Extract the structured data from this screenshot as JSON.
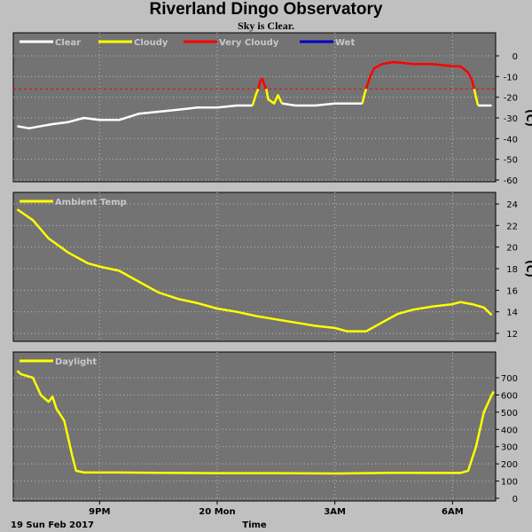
{
  "title": "Riverland Dingo Observatory",
  "subtitle": "Sky is Clear.",
  "colors": {
    "background": "#c0c0c0",
    "panel": "#737373",
    "grid": "#bbbbbb",
    "clear": "#ffffff",
    "cloudy": "#ffff00",
    "very_cloudy": "#ff0000",
    "wet": "#0000c8",
    "threshold": "#ff0000",
    "line": "#ffff00"
  },
  "x_axis": {
    "label": "Time",
    "date_label": "19 Sun Feb 2017",
    "tick_labels": [
      "9PM",
      "20 Mon",
      "3AM",
      "6AM"
    ],
    "tick_hours": [
      21,
      24,
      27,
      30
    ],
    "range_hours": [
      18.8,
      31.1
    ]
  },
  "chart_data": [
    {
      "type": "line",
      "panel": "sky-temperature",
      "ylabel": "(C)",
      "ylim": [
        -60,
        0
      ],
      "yticks": [
        0,
        -10,
        -20,
        -30,
        -40,
        -50,
        -60
      ],
      "threshold": -16,
      "legend": [
        {
          "name": "Clear",
          "color": "#ffffff"
        },
        {
          "name": "Cloudy",
          "color": "#ffff00"
        },
        {
          "name": "Very Cloudy",
          "color": "#ff0000"
        },
        {
          "name": "Wet",
          "color": "#0000c8"
        }
      ],
      "series": [
        {
          "name": "Clear",
          "color": "#ffffff",
          "points": [
            [
              18.9,
              -34
            ],
            [
              19.2,
              -35
            ],
            [
              19.5,
              -34
            ],
            [
              19.8,
              -33
            ],
            [
              20.2,
              -32
            ],
            [
              20.6,
              -30
            ],
            [
              21.0,
              -31
            ],
            [
              21.5,
              -31
            ],
            [
              22.0,
              -28
            ],
            [
              22.5,
              -27
            ],
            [
              23.0,
              -26
            ],
            [
              23.5,
              -25
            ],
            [
              24.0,
              -25
            ],
            [
              24.5,
              -24
            ],
            [
              24.9,
              -24
            ]
          ]
        },
        {
          "name": "Cloudy",
          "color": "#ffff00",
          "points": [
            [
              24.9,
              -24
            ],
            [
              25.0,
              -18
            ],
            [
              25.05,
              -16
            ]
          ]
        },
        {
          "name": "Very Cloudy",
          "color": "#ff0000",
          "points": [
            [
              25.05,
              -16
            ],
            [
              25.1,
              -12
            ],
            [
              25.15,
              -11
            ],
            [
              25.2,
              -14
            ],
            [
              25.25,
              -16
            ]
          ]
        },
        {
          "name": "Cloudy",
          "color": "#ffff00",
          "points": [
            [
              25.25,
              -16
            ],
            [
              25.3,
              -21
            ],
            [
              25.45,
              -23
            ],
            [
              25.55,
              -19
            ],
            [
              25.65,
              -23
            ]
          ]
        },
        {
          "name": "Clear",
          "color": "#ffffff",
          "points": [
            [
              25.65,
              -23
            ],
            [
              26.0,
              -24
            ],
            [
              26.5,
              -24
            ],
            [
              27.0,
              -23
            ],
            [
              27.4,
              -23
            ],
            [
              27.7,
              -23
            ]
          ]
        },
        {
          "name": "Cloudy",
          "color": "#ffff00",
          "points": [
            [
              27.7,
              -23
            ],
            [
              27.75,
              -19
            ],
            [
              27.8,
              -16
            ]
          ]
        },
        {
          "name": "Very Cloudy",
          "color": "#ff0000",
          "points": [
            [
              27.8,
              -16
            ],
            [
              27.9,
              -10
            ],
            [
              28.0,
              -6
            ],
            [
              28.2,
              -4
            ],
            [
              28.5,
              -3
            ],
            [
              29.0,
              -4
            ],
            [
              29.5,
              -4
            ],
            [
              30.0,
              -5
            ],
            [
              30.2,
              -5
            ],
            [
              30.4,
              -8
            ],
            [
              30.5,
              -12
            ],
            [
              30.55,
              -16
            ]
          ]
        },
        {
          "name": "Cloudy",
          "color": "#ffff00",
          "points": [
            [
              30.55,
              -16
            ],
            [
              30.6,
              -20
            ],
            [
              30.65,
              -24
            ]
          ]
        },
        {
          "name": "Clear",
          "color": "#ffffff",
          "points": [
            [
              30.65,
              -24
            ],
            [
              30.8,
              -24
            ],
            [
              31.0,
              -24
            ]
          ]
        }
      ]
    },
    {
      "type": "line",
      "panel": "ambient-temperature",
      "ylabel": "(C)",
      "ylim": [
        11.5,
        25
      ],
      "yticks": [
        24,
        22,
        20,
        18,
        16,
        14,
        12
      ],
      "legend": [
        {
          "name": "Ambient Temp",
          "color": "#ffff00"
        }
      ],
      "series": [
        {
          "name": "Ambient Temp",
          "color": "#ffff00",
          "points": [
            [
              18.9,
              23.5
            ],
            [
              19.3,
              22.5
            ],
            [
              19.7,
              20.8
            ],
            [
              20.2,
              19.5
            ],
            [
              20.7,
              18.5
            ],
            [
              21.0,
              18.2
            ],
            [
              21.5,
              17.8
            ],
            [
              22.0,
              16.8
            ],
            [
              22.5,
              15.8
            ],
            [
              23.0,
              15.2
            ],
            [
              23.5,
              14.8
            ],
            [
              24.0,
              14.3
            ],
            [
              24.5,
              14.0
            ],
            [
              25.0,
              13.6
            ],
            [
              25.5,
              13.3
            ],
            [
              26.0,
              13.0
            ],
            [
              26.5,
              12.7
            ],
            [
              27.0,
              12.5
            ],
            [
              27.3,
              12.2
            ],
            [
              27.8,
              12.2
            ],
            [
              28.2,
              13.0
            ],
            [
              28.6,
              13.8
            ],
            [
              29.0,
              14.2
            ],
            [
              29.5,
              14.5
            ],
            [
              30.0,
              14.7
            ],
            [
              30.2,
              14.9
            ],
            [
              30.5,
              14.7
            ],
            [
              30.8,
              14.4
            ],
            [
              31.0,
              13.7
            ]
          ]
        }
      ]
    },
    {
      "type": "line",
      "panel": "daylight",
      "ylabel": "",
      "ylim": [
        0,
        800
      ],
      "yticks": [
        700,
        600,
        500,
        400,
        300,
        200,
        100,
        0
      ],
      "legend": [
        {
          "name": "Daylight",
          "color": "#ffff00"
        }
      ],
      "series": [
        {
          "name": "Daylight",
          "color": "#ffff00",
          "points": [
            [
              18.9,
              740
            ],
            [
              19.0,
              720
            ],
            [
              19.3,
              700
            ],
            [
              19.5,
              600
            ],
            [
              19.7,
              560
            ],
            [
              19.8,
              590
            ],
            [
              19.9,
              520
            ],
            [
              20.1,
              450
            ],
            [
              20.3,
              250
            ],
            [
              20.4,
              160
            ],
            [
              20.6,
              150
            ],
            [
              21.5,
              150
            ],
            [
              22.5,
              148
            ],
            [
              24.0,
              146
            ],
            [
              25.5,
              146
            ],
            [
              27.0,
              144
            ],
            [
              28.5,
              148
            ],
            [
              29.5,
              147
            ],
            [
              30.2,
              147
            ],
            [
              30.4,
              160
            ],
            [
              30.6,
              300
            ],
            [
              30.8,
              500
            ],
            [
              31.0,
              600
            ],
            [
              31.05,
              620
            ]
          ]
        }
      ]
    }
  ]
}
